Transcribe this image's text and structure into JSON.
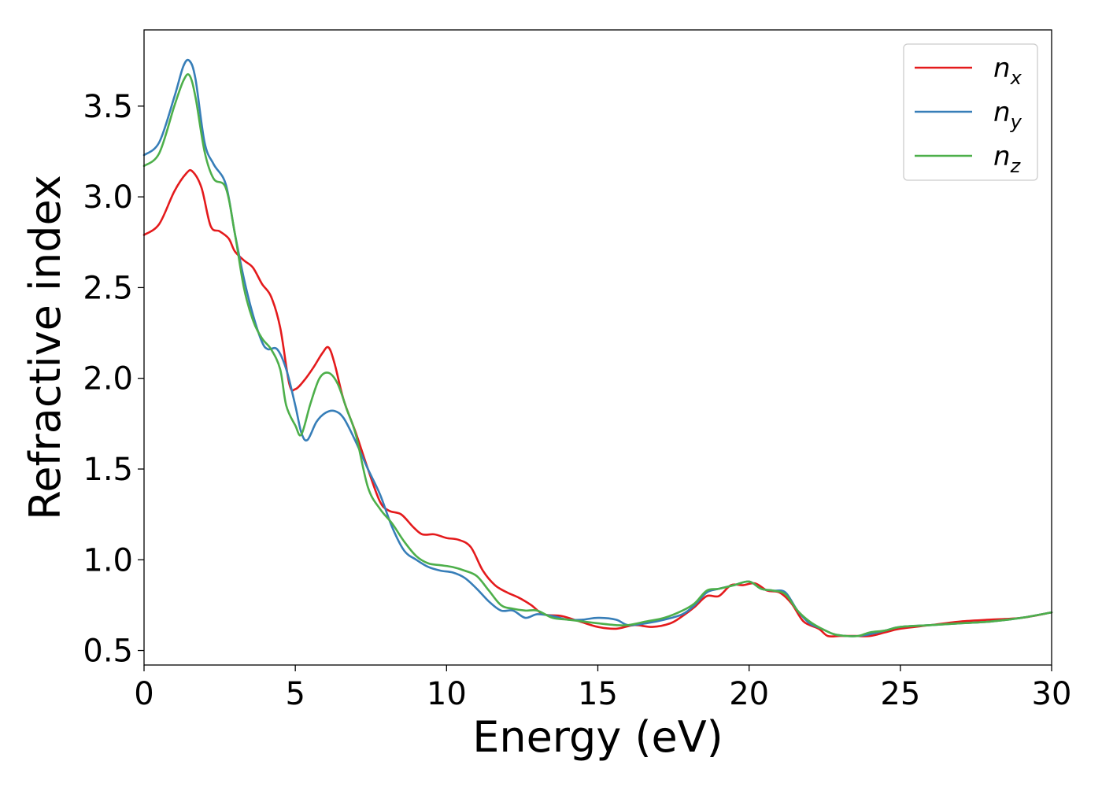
{
  "chart_data": {
    "type": "line",
    "xlabel": "Energy (eV)",
    "ylabel": "Refractive index",
    "xlim": [
      0,
      30
    ],
    "ylim": [
      0.42,
      3.92
    ],
    "xticks": [
      0,
      5,
      10,
      15,
      20,
      25,
      30
    ],
    "xtick_labels": [
      "0",
      "5",
      "10",
      "15",
      "20",
      "25",
      "30"
    ],
    "yticks": [
      0.5,
      1.0,
      1.5,
      2.0,
      2.5,
      3.0,
      3.5
    ],
    "ytick_labels": [
      "0.5",
      "1.0",
      "1.5",
      "2.0",
      "2.5",
      "3.0",
      "3.5"
    ],
    "grid": false,
    "legend_position": "top-right",
    "series": [
      {
        "name": "n_x",
        "label_base": "n",
        "label_sub": "x",
        "color": "#e41a1c",
        "x": [
          0,
          0.5,
          1.0,
          1.4,
          1.6,
          1.9,
          2.2,
          2.5,
          2.8,
          3.0,
          3.3,
          3.6,
          3.9,
          4.2,
          4.5,
          4.8,
          5.0,
          5.3,
          5.6,
          5.9,
          6.1,
          6.3,
          6.6,
          7.0,
          7.4,
          7.8,
          8.1,
          8.5,
          8.9,
          9.2,
          9.6,
          10.0,
          10.4,
          10.8,
          11.2,
          11.6,
          12.0,
          12.4,
          12.8,
          13.2,
          13.8,
          14.4,
          15.0,
          15.6,
          16.2,
          16.8,
          17.4,
          17.8,
          18.2,
          18.6,
          19.0,
          19.4,
          19.8,
          20.2,
          20.6,
          21.0,
          21.4,
          21.8,
          22.3,
          22.6,
          23.0,
          23.5,
          24.0,
          24.5,
          25.0,
          26.0,
          27.0,
          28.0,
          29.0,
          30.0
        ],
        "values": [
          2.79,
          2.85,
          3.03,
          3.13,
          3.14,
          3.05,
          2.84,
          2.81,
          2.77,
          2.7,
          2.65,
          2.61,
          2.52,
          2.45,
          2.28,
          1.97,
          1.94,
          1.99,
          2.06,
          2.14,
          2.17,
          2.08,
          1.88,
          1.7,
          1.5,
          1.32,
          1.27,
          1.25,
          1.18,
          1.14,
          1.14,
          1.12,
          1.11,
          1.07,
          0.94,
          0.86,
          0.82,
          0.79,
          0.75,
          0.7,
          0.69,
          0.66,
          0.63,
          0.62,
          0.64,
          0.63,
          0.65,
          0.69,
          0.74,
          0.8,
          0.8,
          0.86,
          0.86,
          0.87,
          0.83,
          0.82,
          0.76,
          0.66,
          0.62,
          0.58,
          0.58,
          0.58,
          0.58,
          0.6,
          0.62,
          0.64,
          0.66,
          0.67,
          0.68,
          0.71
        ]
      },
      {
        "name": "n_y",
        "label_base": "n",
        "label_sub": "y",
        "color": "#377eb8",
        "x": [
          0,
          0.5,
          1.0,
          1.3,
          1.5,
          1.7,
          2.0,
          2.3,
          2.7,
          3.0,
          3.3,
          3.6,
          3.9,
          4.1,
          4.4,
          4.7,
          5.0,
          5.2,
          5.4,
          5.7,
          6.0,
          6.3,
          6.6,
          7.0,
          7.4,
          7.8,
          8.2,
          8.6,
          9.0,
          9.4,
          9.8,
          10.2,
          10.6,
          11.0,
          11.4,
          11.8,
          12.2,
          12.6,
          13.0,
          13.5,
          14.0,
          14.5,
          15.0,
          15.6,
          16.0,
          16.6,
          17.2,
          17.8,
          18.2,
          18.6,
          19.0,
          19.5,
          20.0,
          20.4,
          20.8,
          21.2,
          21.6,
          22.0,
          22.4,
          22.8,
          23.2,
          23.6,
          24.0,
          24.5,
          25.0,
          26.0,
          27.0,
          28.0,
          29.0,
          30.0
        ],
        "values": [
          3.23,
          3.3,
          3.55,
          3.72,
          3.75,
          3.65,
          3.3,
          3.18,
          3.07,
          2.8,
          2.55,
          2.35,
          2.2,
          2.16,
          2.16,
          2.05,
          1.85,
          1.7,
          1.66,
          1.76,
          1.81,
          1.82,
          1.78,
          1.65,
          1.5,
          1.36,
          1.18,
          1.05,
          1.0,
          0.96,
          0.94,
          0.93,
          0.9,
          0.84,
          0.77,
          0.72,
          0.72,
          0.68,
          0.7,
          0.69,
          0.67,
          0.67,
          0.68,
          0.67,
          0.64,
          0.65,
          0.67,
          0.7,
          0.75,
          0.82,
          0.84,
          0.86,
          0.88,
          0.84,
          0.83,
          0.82,
          0.72,
          0.65,
          0.62,
          0.59,
          0.58,
          0.58,
          0.59,
          0.61,
          0.63,
          0.64,
          0.65,
          0.66,
          0.68,
          0.71
        ]
      },
      {
        "name": "n_z",
        "label_base": "n",
        "label_sub": "z",
        "color": "#4daf4a",
        "x": [
          0,
          0.5,
          1.0,
          1.3,
          1.5,
          1.7,
          2.0,
          2.3,
          2.7,
          3.0,
          3.3,
          3.6,
          3.9,
          4.2,
          4.5,
          4.7,
          5.0,
          5.2,
          5.5,
          5.8,
          6.1,
          6.4,
          6.7,
          7.0,
          7.4,
          7.8,
          8.2,
          8.6,
          9.0,
          9.4,
          9.8,
          10.2,
          10.6,
          11.0,
          11.4,
          11.8,
          12.2,
          12.6,
          13.0,
          13.5,
          14.0,
          14.5,
          15.0,
          15.6,
          16.0,
          16.6,
          17.2,
          17.8,
          18.2,
          18.6,
          19.0,
          19.5,
          20.0,
          20.4,
          20.8,
          21.2,
          21.6,
          22.0,
          22.4,
          22.8,
          23.2,
          23.6,
          24.0,
          24.5,
          25.0,
          26.0,
          27.0,
          28.0,
          29.0,
          30.0
        ],
        "values": [
          3.17,
          3.24,
          3.5,
          3.64,
          3.67,
          3.55,
          3.25,
          3.1,
          3.05,
          2.8,
          2.5,
          2.32,
          2.22,
          2.16,
          2.05,
          1.85,
          1.74,
          1.69,
          1.86,
          2.0,
          2.03,
          1.97,
          1.83,
          1.69,
          1.4,
          1.28,
          1.2,
          1.1,
          1.02,
          0.98,
          0.97,
          0.96,
          0.94,
          0.91,
          0.83,
          0.75,
          0.73,
          0.72,
          0.72,
          0.68,
          0.67,
          0.66,
          0.65,
          0.64,
          0.64,
          0.66,
          0.68,
          0.72,
          0.76,
          0.83,
          0.84,
          0.86,
          0.88,
          0.84,
          0.83,
          0.81,
          0.72,
          0.66,
          0.62,
          0.59,
          0.58,
          0.58,
          0.6,
          0.61,
          0.63,
          0.64,
          0.65,
          0.66,
          0.68,
          0.71
        ]
      }
    ]
  }
}
